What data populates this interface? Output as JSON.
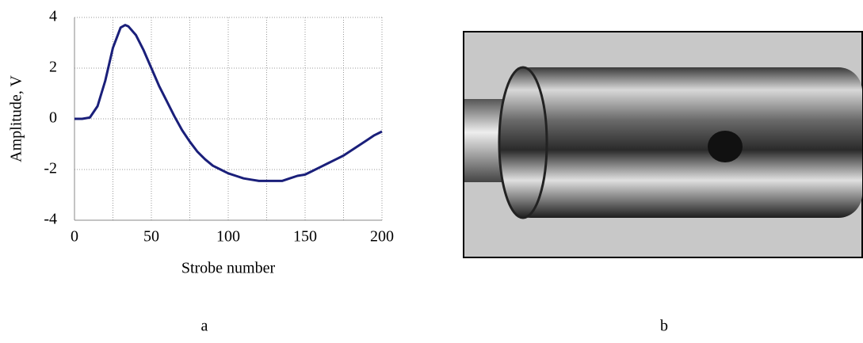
{
  "chart_data": {
    "type": "line",
    "x_label": "Strobe number",
    "y_label": "Amplitude, V",
    "x": [
      0,
      5,
      10,
      15,
      20,
      25,
      30,
      33,
      35,
      40,
      45,
      50,
      55,
      60,
      65,
      70,
      75,
      80,
      85,
      90,
      95,
      100,
      105,
      110,
      115,
      120,
      125,
      130,
      135,
      140,
      145,
      150,
      155,
      160,
      165,
      170,
      175,
      180,
      185,
      190,
      195,
      200
    ],
    "series": [
      {
        "color": "#1a1f7a",
        "values": [
          0,
          0,
          0.05,
          0.5,
          1.5,
          2.8,
          3.6,
          3.7,
          3.65,
          3.3,
          2.7,
          2.0,
          1.3,
          0.7,
          0.1,
          -0.45,
          -0.9,
          -1.3,
          -1.6,
          -1.85,
          -2.0,
          -2.15,
          -2.25,
          -2.35,
          -2.4,
          -2.45,
          -2.45,
          -2.45,
          -2.45,
          -2.35,
          -2.25,
          -2.2,
          -2.05,
          -1.9,
          -1.75,
          -1.6,
          -1.45,
          -1.25,
          -1.05,
          -0.85,
          -0.65,
          -0.5
        ]
      }
    ],
    "xlim": [
      0,
      200
    ],
    "xticks": [
      0,
      50,
      100,
      150,
      200
    ],
    "x_minor_grid": [
      25,
      75,
      125,
      175
    ],
    "ylim": [
      -4,
      4
    ],
    "yticks": [
      -4,
      -2,
      0,
      2,
      4
    ],
    "grid": true
  },
  "captions": [
    "a",
    "b"
  ]
}
